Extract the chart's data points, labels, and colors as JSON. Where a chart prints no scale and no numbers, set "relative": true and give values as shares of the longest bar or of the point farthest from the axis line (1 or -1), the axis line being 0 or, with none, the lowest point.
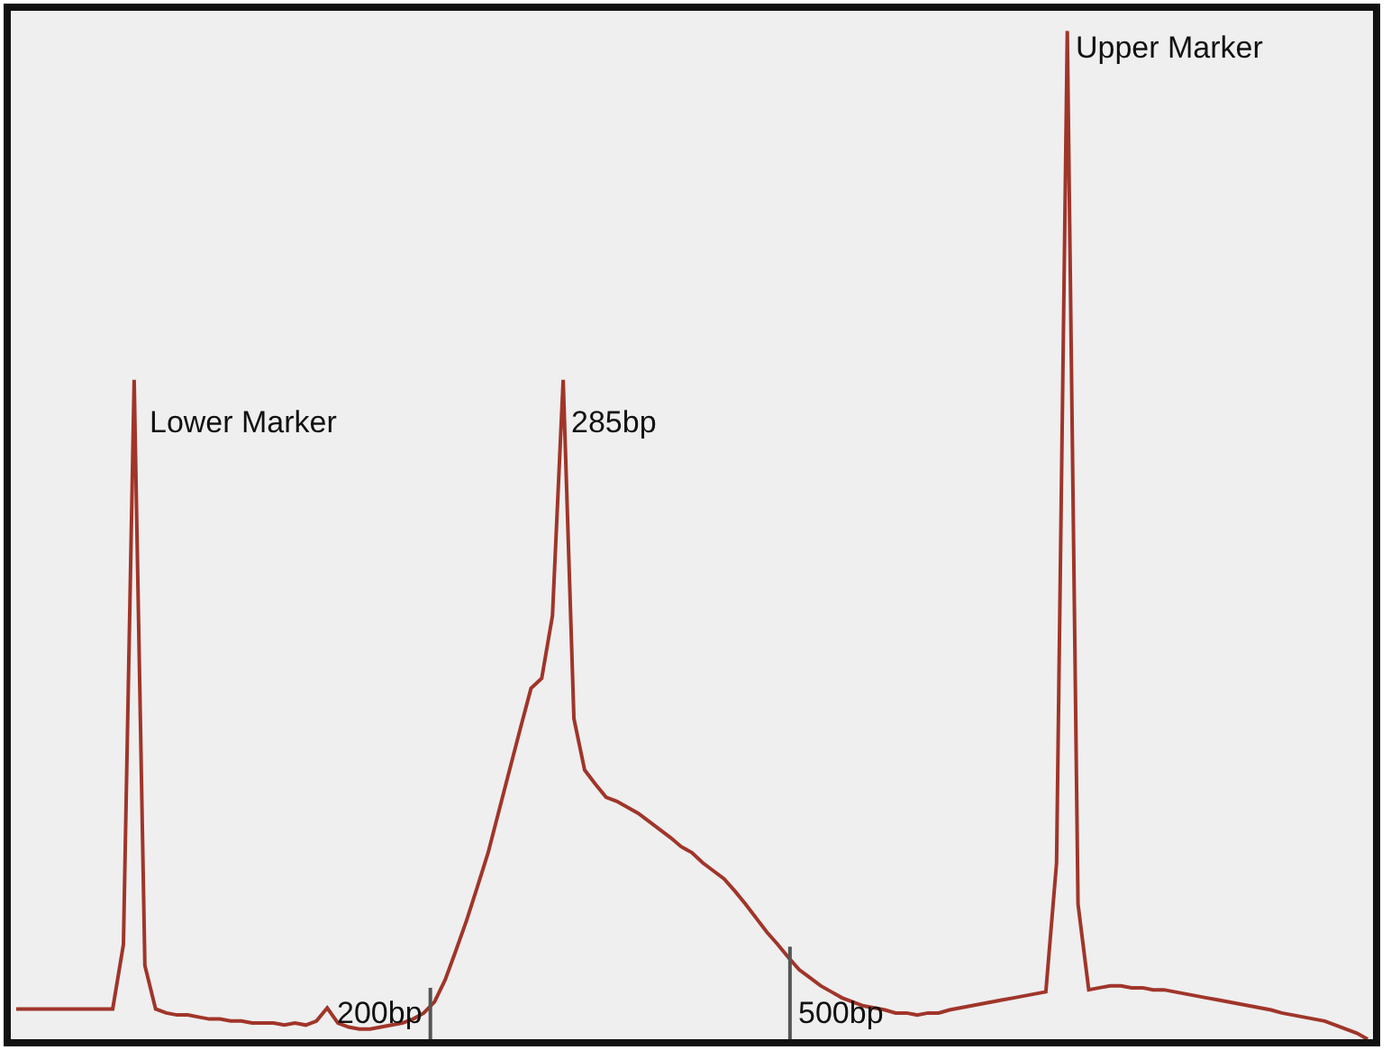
{
  "chart_data": {
    "type": "line",
    "relative": true,
    "categories": [
      null,
      null,
      null,
      null,
      null,
      null,
      null,
      null,
      null,
      null,
      null,
      null,
      null,
      null,
      null,
      null,
      null,
      null,
      null,
      null,
      null,
      null,
      null,
      null,
      null,
      null,
      null,
      null,
      null,
      null,
      null,
      null,
      null,
      null,
      null,
      null,
      null,
      null,
      null,
      null,
      null,
      null,
      null,
      null,
      null,
      null,
      null,
      null,
      null,
      null,
      null,
      null,
      null,
      null,
      null,
      null,
      null,
      null,
      null,
      null,
      null,
      null,
      null,
      null,
      null,
      null,
      null,
      null,
      null,
      null,
      null,
      null,
      null,
      null,
      null,
      null,
      null,
      null,
      null,
      null,
      null,
      null,
      null,
      null,
      null,
      null,
      null,
      null,
      null,
      null,
      null,
      null,
      null,
      null,
      null,
      null,
      null,
      null,
      null,
      null,
      null,
      null,
      null,
      null,
      null,
      null,
      null,
      null,
      null,
      null,
      null,
      null,
      null,
      null,
      null,
      null,
      null,
      null,
      null,
      null,
      null,
      null,
      null,
      null,
      null,
      null,
      null
    ],
    "series": [
      {
        "color": "#a0352a",
        "values": [
          0.03,
          0.03,
          0.03,
          0.03,
          0.03,
          0.03,
          0.03,
          0.03,
          0.03,
          0.03,
          0.094,
          0.654,
          0.073,
          0.03,
          0.026,
          0.024,
          0.024,
          0.022,
          0.02,
          0.02,
          0.018,
          0.018,
          0.016,
          0.016,
          0.016,
          0.014,
          0.016,
          0.014,
          0.018,
          0.031,
          0.016,
          0.012,
          0.01,
          0.01,
          0.012,
          0.014,
          0.016,
          0.02,
          0.026,
          0.037,
          0.059,
          0.088,
          0.118,
          0.151,
          0.185,
          0.226,
          0.267,
          0.308,
          0.348,
          0.358,
          0.42,
          0.654,
          0.318,
          0.267,
          0.253,
          0.24,
          0.236,
          0.23,
          0.224,
          0.216,
          0.208,
          0.2,
          0.191,
          0.185,
          0.175,
          0.167,
          0.159,
          0.147,
          0.134,
          0.12,
          0.106,
          0.094,
          0.081,
          0.069,
          0.061,
          0.053,
          0.047,
          0.041,
          0.037,
          0.033,
          0.031,
          0.029,
          0.026,
          0.026,
          0.024,
          0.026,
          0.026,
          0.029,
          0.031,
          0.033,
          0.035,
          0.037,
          0.039,
          0.041,
          0.043,
          0.045,
          0.047,
          0.175,
          1,
          0.134,
          0.049,
          0.051,
          0.053,
          0.053,
          0.051,
          0.051,
          0.049,
          0.049,
          0.047,
          0.045,
          0.043,
          0.041,
          0.039,
          0.037,
          0.035,
          0.033,
          0.031,
          0.029,
          0.026,
          0.024,
          0.022,
          0.02,
          0.018,
          0.014,
          0.01,
          0.006,
          0
        ]
      }
    ],
    "annotations": [
      "Lower Marker",
      "285bp",
      "Upper Marker",
      "200bp",
      "500bp"
    ]
  }
}
